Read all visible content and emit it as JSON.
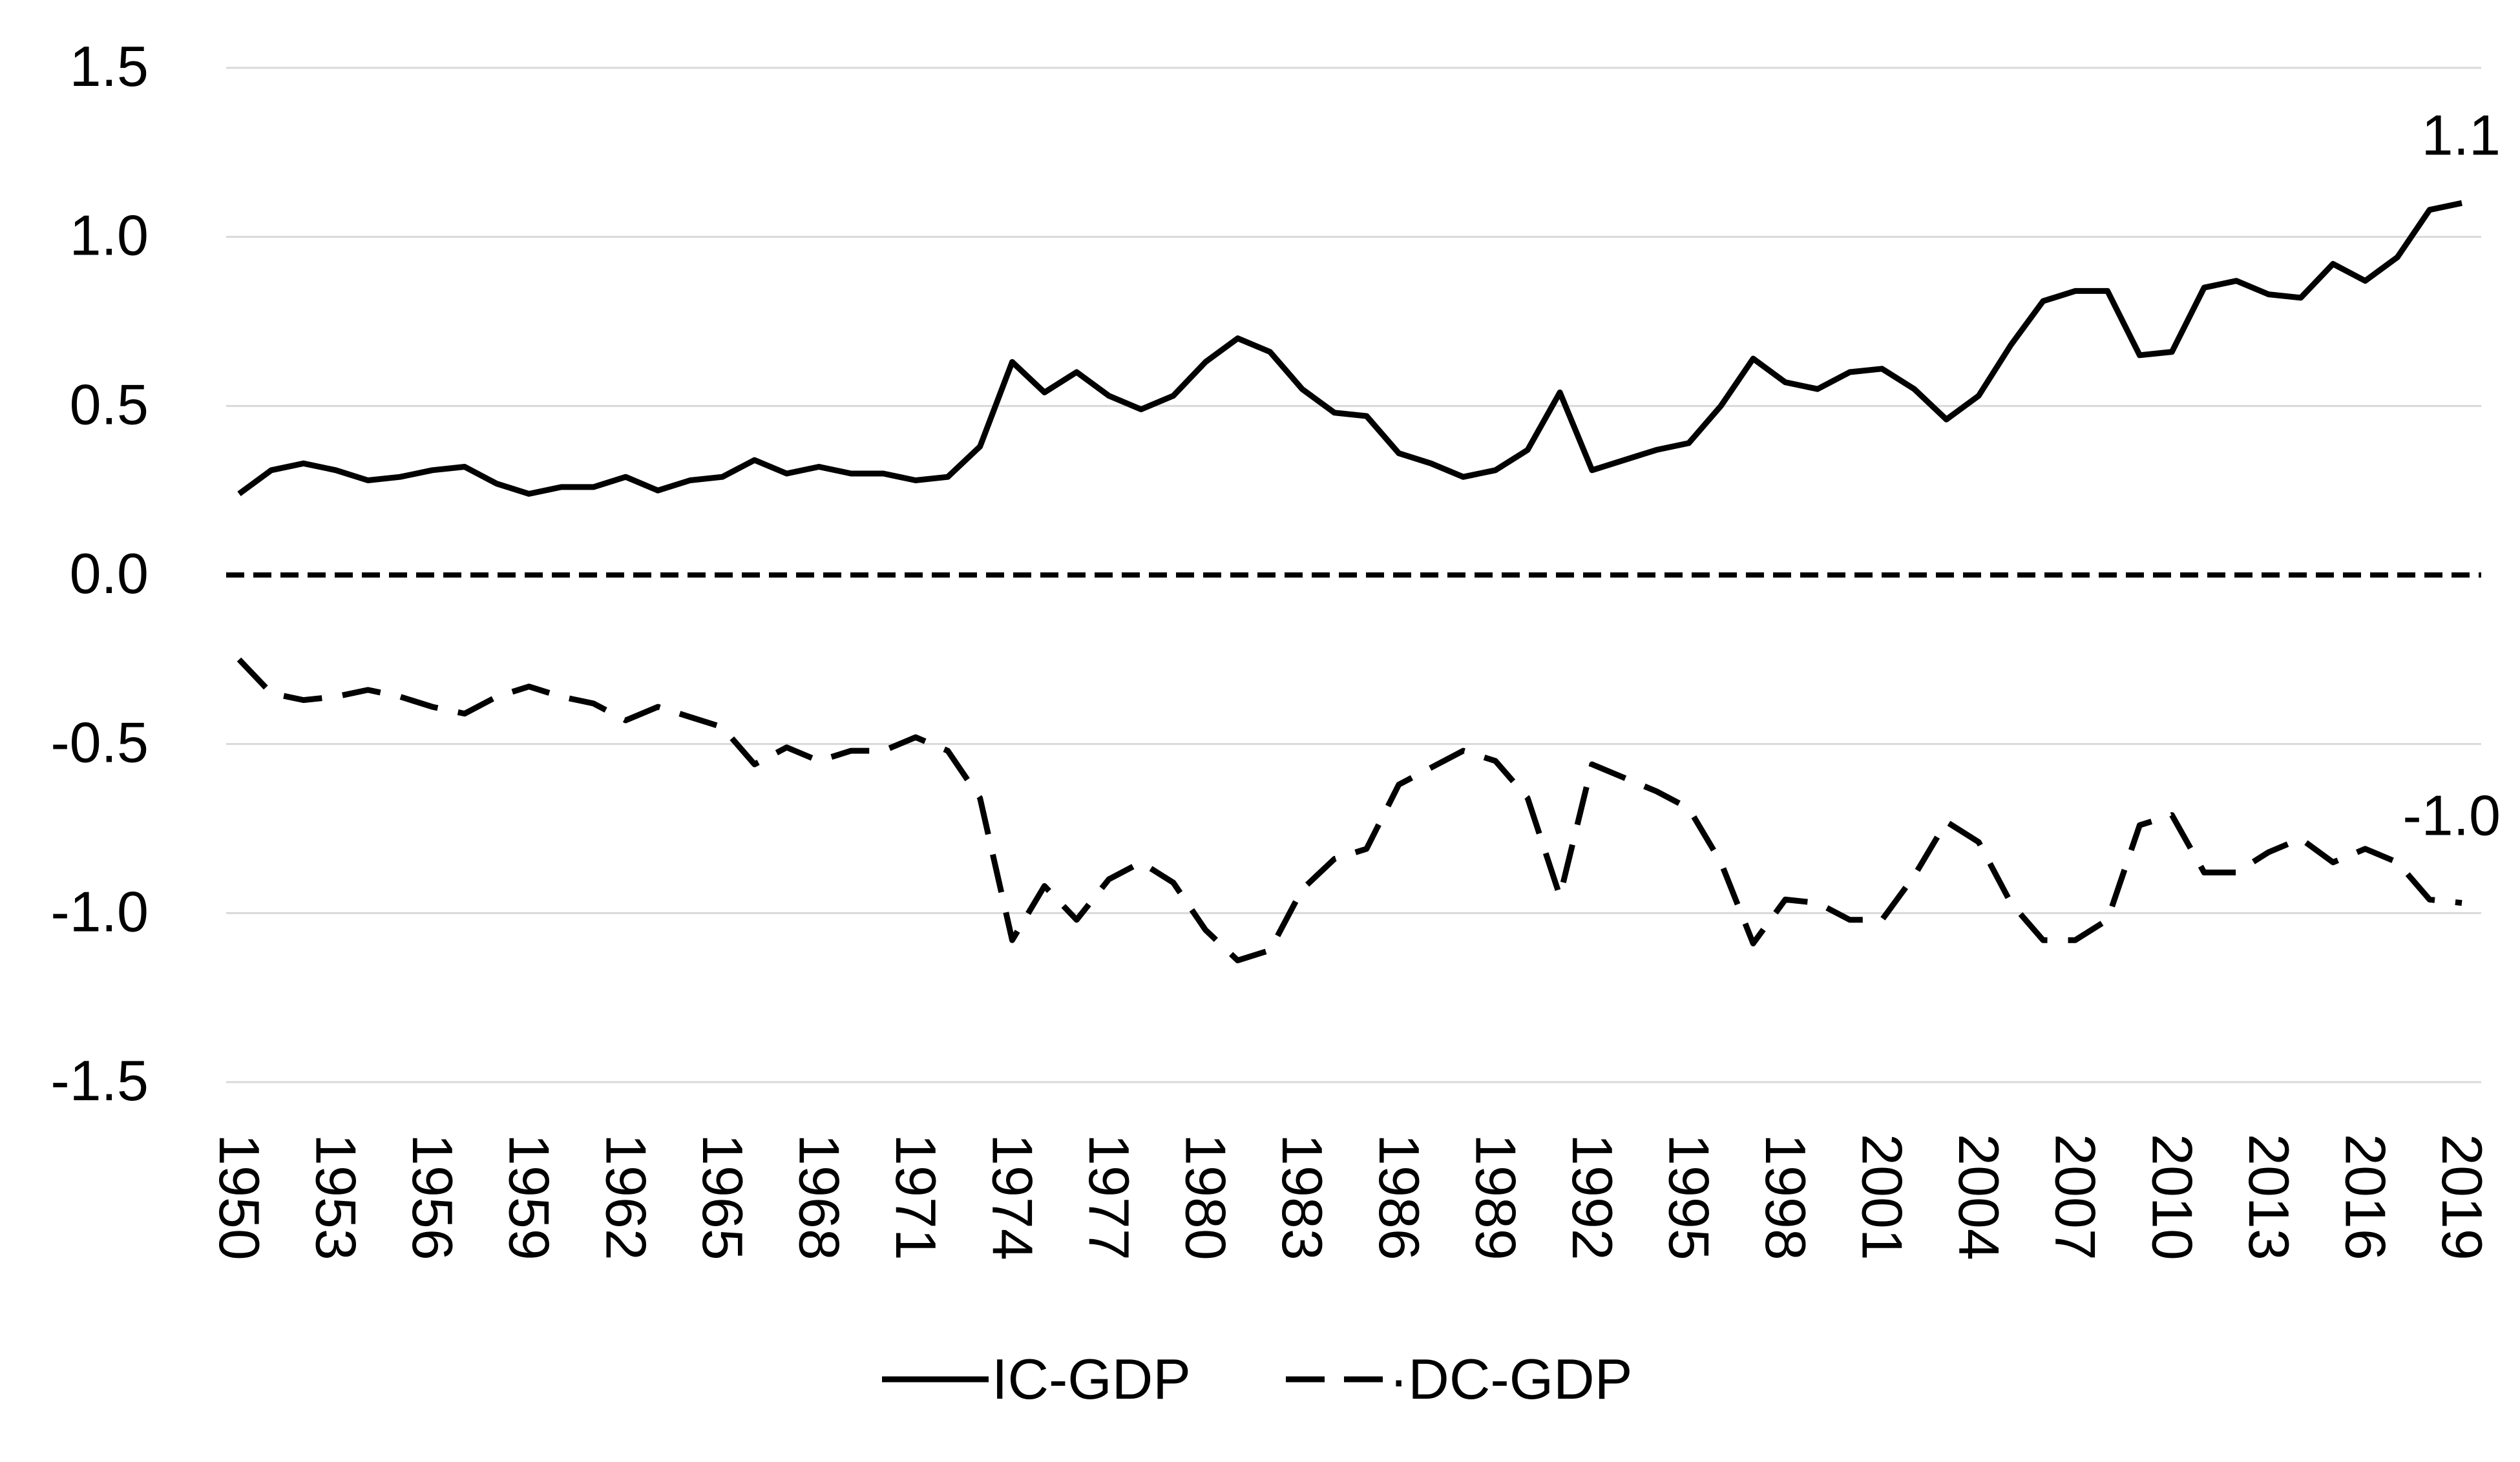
{
  "chart_data": {
    "type": "line",
    "title": "",
    "xlabel": "",
    "ylabel": "",
    "ylim": [
      -1.5,
      1.5
    ],
    "yticks": [
      "1.5",
      "1.0",
      "0.5",
      "0.0",
      "-0.5",
      "-1.0",
      "-1.5"
    ],
    "ytick_values": [
      1.5,
      1.0,
      0.5,
      0.0,
      -0.5,
      -1.0,
      -1.5
    ],
    "grid": true,
    "legend_position": "bottom",
    "x": [
      1950,
      1951,
      1952,
      1953,
      1954,
      1955,
      1956,
      1957,
      1958,
      1959,
      1960,
      1961,
      1962,
      1963,
      1964,
      1965,
      1966,
      1967,
      1968,
      1969,
      1970,
      1971,
      1972,
      1973,
      1974,
      1975,
      1976,
      1977,
      1978,
      1979,
      1980,
      1981,
      1982,
      1983,
      1984,
      1985,
      1986,
      1987,
      1988,
      1989,
      1990,
      1991,
      1992,
      1993,
      1994,
      1995,
      1996,
      1997,
      1998,
      1999,
      2000,
      2001,
      2002,
      2003,
      2004,
      2005,
      2006,
      2007,
      2008,
      2009,
      2010,
      2011,
      2012,
      2013,
      2014,
      2015,
      2016,
      2017,
      2018,
      2019
    ],
    "xtick_labels": [
      "1950",
      "1953",
      "1956",
      "1959",
      "1962",
      "1965",
      "1968",
      "1971",
      "1974",
      "1977",
      "1980",
      "1983",
      "1986",
      "1989",
      "1992",
      "1995",
      "1998",
      "2001",
      "2004",
      "2007",
      "2010",
      "2013",
      "2016",
      "2019"
    ],
    "series": [
      {
        "name": "IC-GDP",
        "style": "solid",
        "color": "#000000",
        "values": [
          0.24,
          0.31,
          0.33,
          0.31,
          0.28,
          0.29,
          0.31,
          0.32,
          0.27,
          0.24,
          0.26,
          0.26,
          0.29,
          0.25,
          0.28,
          0.29,
          0.34,
          0.3,
          0.32,
          0.3,
          0.3,
          0.28,
          0.29,
          0.38,
          0.63,
          0.54,
          0.6,
          0.53,
          0.49,
          0.53,
          0.63,
          0.7,
          0.66,
          0.55,
          0.48,
          0.47,
          0.36,
          0.33,
          0.29,
          0.31,
          0.37,
          0.54,
          0.31,
          0.34,
          0.37,
          0.39,
          0.5,
          0.64,
          0.57,
          0.55,
          0.6,
          0.61,
          0.55,
          0.46,
          0.53,
          0.68,
          0.81,
          0.84,
          0.84,
          0.65,
          0.66,
          0.85,
          0.87,
          0.83,
          0.82,
          0.92,
          0.87,
          0.94,
          1.08,
          1.1
        ],
        "end_label": "1.1"
      },
      {
        "name": "DC-GDP",
        "style": "dashed",
        "color": "#000000",
        "values": [
          -0.25,
          -0.35,
          -0.37,
          -0.36,
          -0.34,
          -0.36,
          -0.39,
          -0.41,
          -0.36,
          -0.33,
          -0.36,
          -0.38,
          -0.43,
          -0.39,
          -0.42,
          -0.45,
          -0.56,
          -0.51,
          -0.55,
          -0.52,
          -0.52,
          -0.48,
          -0.52,
          -0.66,
          -1.08,
          -0.92,
          -1.02,
          -0.9,
          -0.85,
          -0.91,
          -1.05,
          -1.14,
          -1.11,
          -0.93,
          -0.84,
          -0.81,
          -0.62,
          -0.57,
          -0.52,
          -0.55,
          -0.66,
          -0.95,
          -0.56,
          -0.6,
          -0.64,
          -0.69,
          -0.85,
          -1.09,
          -0.96,
          -0.97,
          -1.02,
          -1.02,
          -0.89,
          -0.73,
          -0.79,
          -0.97,
          -1.08,
          -1.08,
          -1.02,
          -0.74,
          -0.71,
          -0.88,
          -0.88,
          -0.82,
          -0.78,
          -0.85,
          -0.81,
          -0.85,
          -0.96,
          -0.97
        ],
        "end_label": "-1.0"
      }
    ],
    "reference_line": {
      "y": 0.0,
      "style": "dashed"
    }
  }
}
